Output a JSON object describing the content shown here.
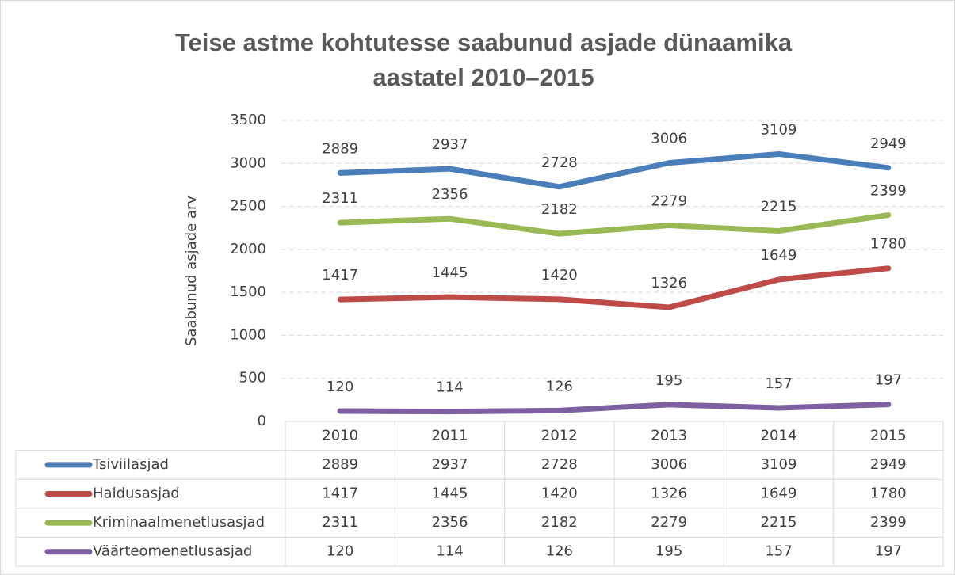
{
  "chart_data": {
    "type": "line",
    "title": [
      "Teise astme kohtutesse saabunud asjade dünaamika",
      "aastatel 2010–2015"
    ],
    "y_label": "Saabunud asjade arv",
    "categories": [
      "2010",
      "2011",
      "2012",
      "2013",
      "2014",
      "2015"
    ],
    "series": [
      {
        "name": "Tsiviilasjad",
        "color": "#4a7ebb",
        "values": [
          2889,
          2937,
          2728,
          3006,
          3109,
          2949
        ]
      },
      {
        "name": "Haldusasjad",
        "color": "#be4b48",
        "values": [
          1417,
          1445,
          1420,
          1326,
          1649,
          1780
        ]
      },
      {
        "name": "Kriminaalmenetlusasjad",
        "color": "#98b954",
        "values": [
          2311,
          2356,
          2182,
          2279,
          2215,
          2399
        ]
      },
      {
        "name": "Väärteomenetlusasjad",
        "color": "#7d60a0",
        "values": [
          120,
          114,
          126,
          195,
          157,
          197
        ]
      }
    ],
    "ylim": [
      0,
      3500
    ],
    "yticks": [
      0,
      500,
      1000,
      1500,
      2000,
      2500,
      3000,
      3500
    ],
    "grid": true
  }
}
